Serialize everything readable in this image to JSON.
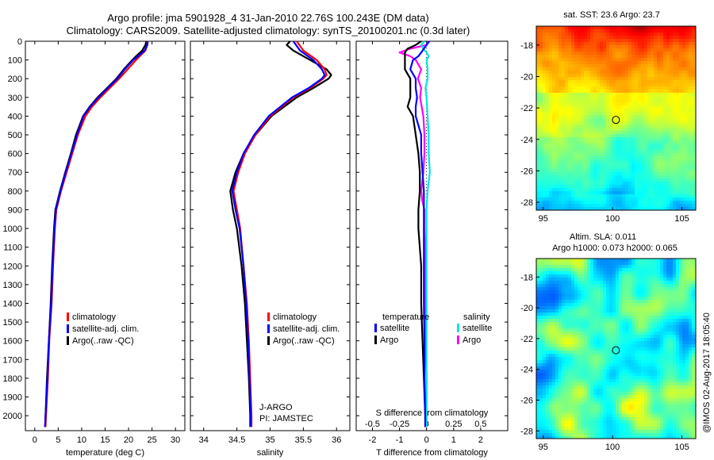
{
  "title": {
    "line1": "Argo profile: jma 5901928_4 31-Jan-2010 22.76S 100.243E (DM data)",
    "line2": "Climatology: CARS2009. Satellite-adjusted climatology: synTS_20100201.nc (0.3d later)"
  },
  "colors": {
    "climatology": "#ff0000",
    "satellite": "#0000ff",
    "argo": "#000000",
    "sal_satellite": "#00e5e5",
    "sal_argo": "#ff00ff"
  },
  "depth_axis": {
    "ylim": [
      0,
      2080
    ],
    "ticks": [
      0,
      100,
      200,
      300,
      400,
      500,
      600,
      700,
      800,
      900,
      1000,
      1100,
      1200,
      1300,
      1400,
      1500,
      1600,
      1700,
      1800,
      1900,
      2000
    ]
  },
  "chart_data": [
    {
      "type": "line",
      "id": "temperature",
      "xlabel": "temperature (deg C)",
      "ylabel": "",
      "xlim": [
        -2,
        32
      ],
      "ylim": [
        2080,
        0
      ],
      "xticks": [
        0,
        5,
        10,
        15,
        20,
        25,
        30
      ],
      "legend": [
        "climatology",
        "satellite-adj. clim.",
        "Argo(..raw -QC)"
      ],
      "series": [
        {
          "name": "climatology",
          "color": "red",
          "depth": [
            0,
            20,
            50,
            80,
            100,
            150,
            200,
            250,
            300,
            350,
            400,
            500,
            600,
            700,
            800,
            900,
            1000,
            1200,
            1400,
            1600,
            1800,
            2000,
            2060
          ],
          "values": [
            24.0,
            24.0,
            23.6,
            22.4,
            21.6,
            19.8,
            18.0,
            16.0,
            14.0,
            12.2,
            10.8,
            9.2,
            8.0,
            6.8,
            5.6,
            4.6,
            4.3,
            3.9,
            3.6,
            3.1,
            2.8,
            2.4,
            2.3
          ]
        },
        {
          "name": "satellite-adj. clim.",
          "color": "blue",
          "depth": [
            0,
            20,
            50,
            80,
            100,
            150,
            200,
            250,
            300,
            350,
            400,
            500,
            600,
            700,
            800,
            900,
            1000,
            1200,
            1400,
            1600,
            1800,
            2000,
            2060
          ],
          "values": [
            24.1,
            24.0,
            23.4,
            22.0,
            21.0,
            19.2,
            17.6,
            15.6,
            13.6,
            11.8,
            10.4,
            9.0,
            7.8,
            6.6,
            5.5,
            4.5,
            4.2,
            3.8,
            3.5,
            3.0,
            2.7,
            2.3,
            2.2
          ]
        },
        {
          "name": "Argo(..raw -QC)",
          "color": "black",
          "depth": [
            0,
            20,
            50,
            80,
            100,
            150,
            200,
            250,
            300,
            350,
            400,
            500,
            600,
            700,
            800,
            900,
            1000,
            1200,
            1400,
            1600,
            1800,
            2000,
            2060
          ],
          "values": [
            23.8,
            23.6,
            22.9,
            21.6,
            20.8,
            19.0,
            17.4,
            15.4,
            13.4,
            11.7,
            10.3,
            8.8,
            7.7,
            6.5,
            5.4,
            4.4,
            4.1,
            3.7,
            3.4,
            3.0,
            2.6,
            2.3,
            2.2
          ]
        }
      ]
    },
    {
      "type": "line",
      "id": "salinity",
      "xlabel": "salinity",
      "ylabel": "",
      "xlim": [
        33.8,
        36.2
      ],
      "ylim": [
        2080,
        0
      ],
      "xticks": [
        34,
        34.5,
        35,
        35.5,
        36
      ],
      "legend": [
        "climatology",
        "satellite-adj. clim.",
        "Argo(..raw -QC)"
      ],
      "annotations": [
        "J-ARGO",
        "PI: JAMSTEC"
      ],
      "series": [
        {
          "name": "climatology",
          "color": "red",
          "depth": [
            0,
            50,
            100,
            150,
            180,
            200,
            250,
            300,
            400,
            500,
            600,
            700,
            800,
            900,
            1000,
            1200,
            1400,
            1600,
            1800,
            2000,
            2060
          ],
          "values": [
            35.4,
            35.5,
            35.7,
            35.82,
            35.85,
            35.8,
            35.6,
            35.35,
            35.0,
            34.78,
            34.62,
            34.52,
            34.45,
            34.5,
            34.55,
            34.6,
            34.65,
            34.68,
            34.7,
            34.72,
            34.72
          ]
        },
        {
          "name": "satellite-adj. clim.",
          "color": "blue",
          "depth": [
            0,
            50,
            100,
            150,
            180,
            200,
            250,
            300,
            400,
            500,
            600,
            700,
            800,
            900,
            1000,
            1200,
            1400,
            1600,
            1800,
            2000,
            2060
          ],
          "values": [
            35.35,
            35.45,
            35.65,
            35.78,
            35.82,
            35.78,
            35.58,
            35.33,
            34.98,
            34.76,
            34.6,
            34.5,
            34.43,
            34.48,
            34.54,
            34.6,
            34.64,
            34.67,
            34.69,
            34.71,
            34.71
          ]
        },
        {
          "name": "Argo(..raw -QC)",
          "color": "black",
          "depth": [
            0,
            20,
            50,
            100,
            150,
            180,
            200,
            250,
            300,
            400,
            500,
            600,
            700,
            800,
            900,
            1000,
            1200,
            1400,
            1600,
            1800,
            2000,
            2060
          ],
          "values": [
            35.3,
            35.25,
            35.35,
            35.6,
            35.85,
            35.92,
            35.88,
            35.65,
            35.4,
            35.02,
            34.78,
            34.6,
            34.48,
            34.4,
            34.44,
            34.5,
            34.57,
            34.62,
            34.65,
            34.68,
            34.7,
            34.7
          ]
        }
      ]
    },
    {
      "type": "line",
      "id": "difference",
      "xlabel": "T difference from climatology",
      "xlabel2": "S difference from climatology",
      "xlim": [
        -2.6,
        3.0
      ],
      "ylim": [
        2080,
        0
      ],
      "xticks": [
        -2,
        -1,
        0,
        1,
        2
      ],
      "xticks2_labels": [
        "-0.5",
        "-0.25",
        "0",
        "0.25",
        "0.5"
      ],
      "xticks2_values": [
        -0.5,
        -0.25,
        0,
        0.25,
        0.5
      ],
      "legend_headers": [
        "temperature",
        "salinity"
      ],
      "legend": [
        "satellite",
        "Argo",
        "satellite",
        "Argo"
      ],
      "series": [
        {
          "name": "T satellite",
          "color": "blue",
          "units": "degC",
          "depth": [
            0,
            20,
            40,
            60,
            80,
            100,
            150,
            200,
            250,
            300,
            350,
            400,
            500,
            600,
            700,
            800,
            900,
            1000,
            1200,
            1400,
            1600,
            1800,
            2000,
            2060
          ],
          "values": [
            0.1,
            0.0,
            -0.1,
            -0.2,
            -0.3,
            -0.5,
            -0.6,
            -0.4,
            -0.4,
            -0.35,
            -0.4,
            -0.4,
            -0.2,
            -0.2,
            -0.15,
            -0.1,
            -0.1,
            -0.1,
            -0.1,
            -0.1,
            -0.08,
            -0.08,
            -0.05,
            -0.05
          ]
        },
        {
          "name": "T Argo",
          "color": "black",
          "units": "degC",
          "depth": [
            0,
            20,
            40,
            60,
            80,
            100,
            150,
            200,
            250,
            300,
            350,
            400,
            500,
            600,
            700,
            800,
            900,
            1000,
            1200,
            1400,
            1600,
            1800,
            2000,
            2060
          ],
          "values": [
            -0.2,
            -0.4,
            -0.7,
            -0.8,
            -0.8,
            -0.8,
            -0.8,
            -0.6,
            -0.6,
            -0.6,
            -0.7,
            -0.5,
            -0.4,
            -0.3,
            -0.25,
            -0.25,
            -0.3,
            -0.3,
            -0.2,
            -0.2,
            -0.15,
            -0.1,
            -0.05,
            -0.05
          ]
        },
        {
          "name": "S satellite",
          "color": "cyan",
          "units": "psu",
          "depth": [
            0,
            20,
            40,
            60,
            80,
            100,
            150,
            200,
            250,
            300,
            400,
            500,
            600,
            700,
            800,
            900,
            1000,
            1200,
            1400,
            1600,
            1800,
            2000,
            2060
          ],
          "values": [
            -0.02,
            -0.05,
            -0.03,
            0.0,
            0.02,
            0.0,
            0.01,
            0.01,
            -0.01,
            0.0,
            0.01,
            0.02,
            0.02,
            0.03,
            0.01,
            0.0,
            0.0,
            0.0,
            0.0,
            0.0,
            0.0,
            0.0,
            0.0
          ]
        },
        {
          "name": "S Argo",
          "color": "magenta",
          "units": "psu",
          "depth": [
            0,
            20,
            40,
            60,
            70,
            80,
            100,
            150,
            200,
            250,
            300,
            400,
            500,
            600,
            700,
            800,
            850,
            900,
            1000,
            1200,
            1400,
            1600,
            1800,
            2000,
            2060
          ],
          "values": [
            0.02,
            0.0,
            -0.15,
            -0.25,
            -0.2,
            -0.15,
            -0.1,
            -0.05,
            -0.08,
            -0.05,
            -0.06,
            -0.03,
            -0.02,
            -0.02,
            -0.03,
            -0.05,
            -0.04,
            -0.02,
            -0.02,
            -0.01,
            -0.01,
            -0.01,
            0.0,
            0.0,
            0.0
          ]
        }
      ]
    },
    {
      "type": "heatmap",
      "id": "sst_map",
      "title": "sat. SST: 23.6 Argo: 23.7",
      "xlim": [
        94.5,
        106
      ],
      "ylim": [
        -28.5,
        -16.8
      ],
      "xticks": [
        95,
        100,
        105
      ],
      "yticks": [
        -18,
        -20,
        -22,
        -24,
        -26,
        -28
      ],
      "marker": {
        "lon": 100.243,
        "lat": -22.76
      }
    },
    {
      "type": "heatmap",
      "id": "sla_map",
      "title": "Altim. SLA: 0.011",
      "subtitle": "Argo h1000: 0.073 h2000: 0.065",
      "xlim": [
        94.5,
        106
      ],
      "ylim": [
        -28.5,
        -16.8
      ],
      "xticks": [
        95,
        100,
        105
      ],
      "yticks": [
        -18,
        -20,
        -22,
        -24,
        -26,
        -28
      ],
      "marker": {
        "lon": 100.243,
        "lat": -22.76
      }
    }
  ],
  "credit": "@IMOS 02-Aug-2017 18:05:40"
}
